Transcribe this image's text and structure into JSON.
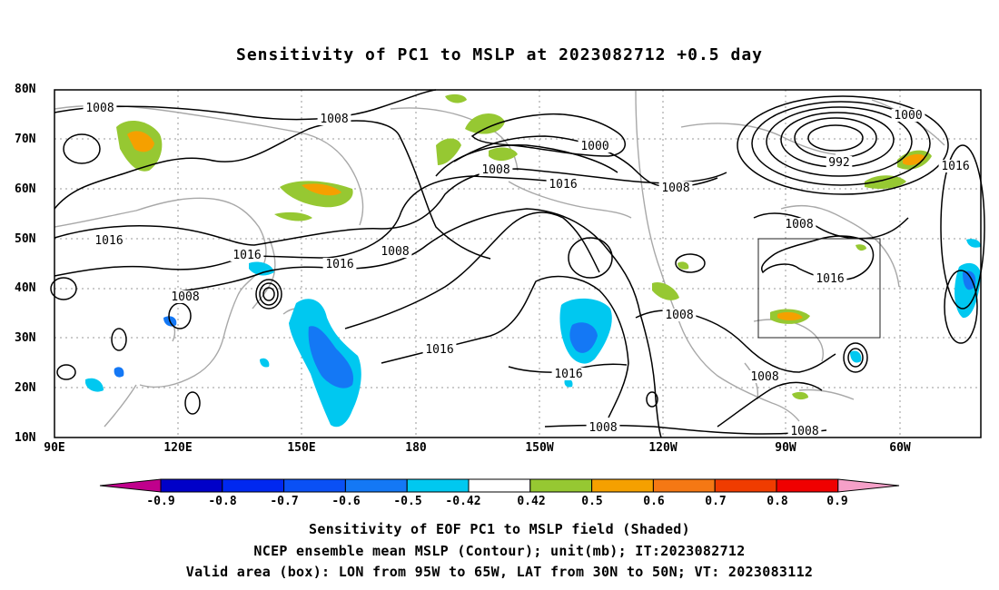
{
  "title": "Sensitivity of PC1 to MSLP at 2023082712 +0.5 day",
  "map": {
    "lat_labels": [
      "80N",
      "70N",
      "60N",
      "50N",
      "40N",
      "30N",
      "20N",
      "10N"
    ],
    "lon_labels": [
      "90E",
      "120E",
      "150E",
      "180",
      "150W",
      "120W",
      "90W",
      "60W"
    ],
    "contour_labels": [
      {
        "text": "1008"
      },
      {
        "text": "1008"
      },
      {
        "text": "1016"
      },
      {
        "text": "1016"
      },
      {
        "text": "1008"
      },
      {
        "text": "1016"
      },
      {
        "text": "1008"
      },
      {
        "text": "1000"
      },
      {
        "text": "1008"
      },
      {
        "text": "1016"
      },
      {
        "text": "1008"
      },
      {
        "text": "1000"
      },
      {
        "text": "992"
      },
      {
        "text": "1016"
      },
      {
        "text": "1008"
      },
      {
        "text": "1016"
      },
      {
        "text": "1016"
      },
      {
        "text": "1016"
      },
      {
        "text": "1008"
      },
      {
        "text": "1008"
      },
      {
        "text": "1008"
      },
      {
        "text": "1008"
      }
    ],
    "valid_box": {
      "lon_west": "95W",
      "lon_east": "65W",
      "lat_south": "30N",
      "lat_north": "50N"
    }
  },
  "colorbar": {
    "labels": [
      "-0.9",
      "-0.8",
      "-0.7",
      "-0.6",
      "-0.5",
      "-0.42",
      "0.42",
      "0.5",
      "0.6",
      "0.7",
      "0.8",
      "0.9"
    ],
    "colors": [
      "#c0008c",
      "#0000c8",
      "#0028f0",
      "#0a50f5",
      "#1478f5",
      "#00c8f0",
      "#ffffff",
      "#96c832",
      "#f5a000",
      "#f57814",
      "#f03c00",
      "#f00000",
      "#f5a0c8"
    ]
  },
  "captions": [
    "Sensitivity of EOF PC1 to MSLP field (Shaded)",
    "NCEP ensemble mean MSLP (Contour); unit(mb); IT:2023082712",
    "Valid area (box): LON from 95W to 65W, LAT from 30N to 50N; VT: 2023083112"
  ]
}
